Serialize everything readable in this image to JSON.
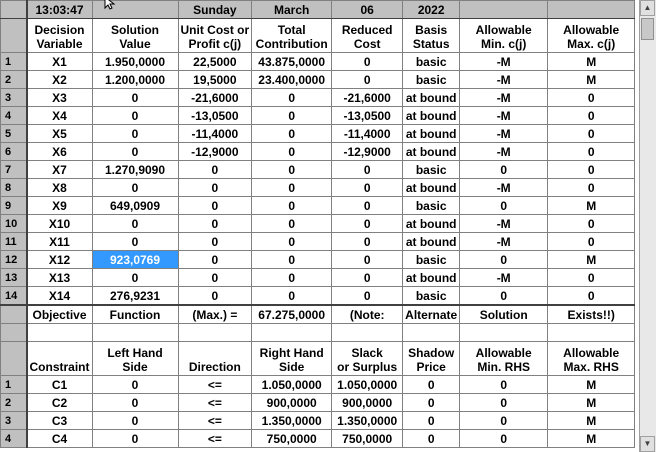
{
  "header_bar": {
    "time": "13:03:47",
    "day": "Sunday",
    "month": "March",
    "date": "06",
    "year": "2022"
  },
  "var_headers": [
    [
      "Decision",
      "Variable"
    ],
    [
      "Solution",
      "Value"
    ],
    [
      "Unit Cost or",
      "Profit c(j)"
    ],
    [
      "Total",
      "Contribution"
    ],
    [
      "Reduced",
      "Cost"
    ],
    [
      "Basis",
      "Status"
    ],
    [
      "Allowable",
      "Min. c(j)"
    ],
    [
      "Allowable",
      "Max. c(j)"
    ]
  ],
  "var_rows": [
    [
      "1",
      "X1",
      "1.950,0000",
      "22,5000",
      "43.875,0000",
      "0",
      "basic",
      "-M",
      "M"
    ],
    [
      "2",
      "X2",
      "1.200,0000",
      "19,5000",
      "23.400,0000",
      "0",
      "basic",
      "-M",
      "M"
    ],
    [
      "3",
      "X3",
      "0",
      "-21,6000",
      "0",
      "-21,6000",
      "at bound",
      "-M",
      "0"
    ],
    [
      "4",
      "X4",
      "0",
      "-13,0500",
      "0",
      "-13,0500",
      "at bound",
      "-M",
      "0"
    ],
    [
      "5",
      "X5",
      "0",
      "-11,4000",
      "0",
      "-11,4000",
      "at bound",
      "-M",
      "0"
    ],
    [
      "6",
      "X6",
      "0",
      "-12,9000",
      "0",
      "-12,9000",
      "at bound",
      "-M",
      "0"
    ],
    [
      "7",
      "X7",
      "1.270,9090",
      "0",
      "0",
      "0",
      "basic",
      "0",
      "0"
    ],
    [
      "8",
      "X8",
      "0",
      "0",
      "0",
      "0",
      "at bound",
      "-M",
      "0"
    ],
    [
      "9",
      "X9",
      "649,0909",
      "0",
      "0",
      "0",
      "basic",
      "0",
      "M"
    ],
    [
      "10",
      "X10",
      "0",
      "0",
      "0",
      "0",
      "at bound",
      "-M",
      "0"
    ],
    [
      "11",
      "X11",
      "0",
      "0",
      "0",
      "0",
      "at bound",
      "-M",
      "0"
    ],
    [
      "12",
      "X12",
      "923,0769",
      "0",
      "0",
      "0",
      "basic",
      "0",
      "M"
    ],
    [
      "13",
      "X13",
      "0",
      "0",
      "0",
      "0",
      "at bound",
      "-M",
      "0"
    ],
    [
      "14",
      "X14",
      "276,9231",
      "0",
      "0",
      "0",
      "basic",
      "0",
      "0"
    ]
  ],
  "objective_row": [
    "Objective",
    "Function",
    "(Max.) =",
    "67.275,0000",
    "(Note:",
    "Alternate",
    "Solution",
    "Exists!!)"
  ],
  "con_headers": [
    [
      "",
      "Constraint"
    ],
    [
      "Left Hand",
      "Side"
    ],
    [
      "",
      "Direction"
    ],
    [
      "Right Hand",
      "Side"
    ],
    [
      "Slack",
      "or Surplus"
    ],
    [
      "Shadow",
      "Price"
    ],
    [
      "Allowable",
      "Min. RHS"
    ],
    [
      "Allowable",
      "Max. RHS"
    ]
  ],
  "con_rows": [
    [
      "1",
      "C1",
      "0",
      "<=",
      "1.050,0000",
      "1.050,0000",
      "0",
      "0",
      "M"
    ],
    [
      "2",
      "C2",
      "0",
      "<=",
      "900,0000",
      "900,0000",
      "0",
      "0",
      "M"
    ],
    [
      "3",
      "C3",
      "0",
      "<=",
      "1.350,0000",
      "1.350,0000",
      "0",
      "0",
      "M"
    ],
    [
      "4",
      "C4",
      "0",
      "<=",
      "750,0000",
      "750,0000",
      "0",
      "0",
      "M"
    ]
  ],
  "selected_cell": {
    "row": 11,
    "col": 2
  }
}
